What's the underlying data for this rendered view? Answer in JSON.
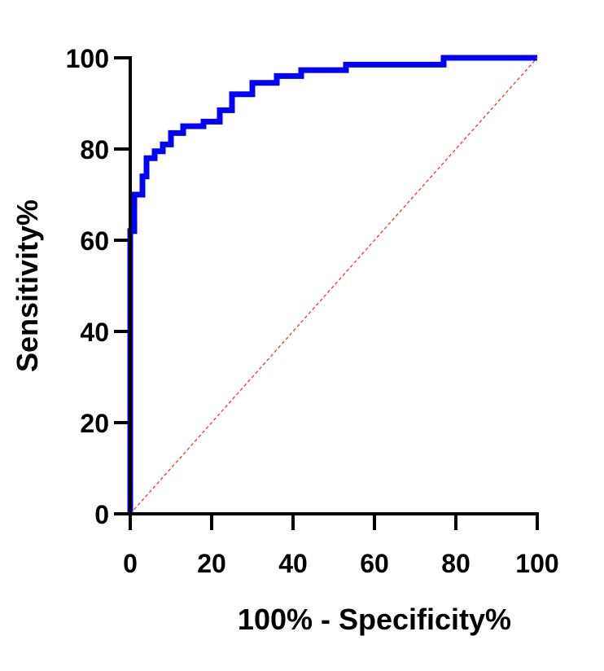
{
  "chart_data": {
    "type": "line",
    "title": "",
    "xlabel": "100% - Specificity%",
    "ylabel": "Sensitivity%",
    "xlim": [
      0,
      100
    ],
    "ylim": [
      0,
      100
    ],
    "x_ticks": [
      "0",
      "20",
      "40",
      "60",
      "80",
      "100"
    ],
    "y_ticks": [
      "0",
      "20",
      "40",
      "60",
      "80",
      "100"
    ],
    "grid": false,
    "legend": "none",
    "series": [
      {
        "style": "step",
        "color": "#0000ff",
        "x": [
          0,
          0,
          1,
          1,
          3,
          3,
          4,
          4,
          6,
          6,
          8,
          8,
          10,
          10,
          13,
          13,
          18,
          18,
          22,
          22,
          25,
          25,
          30,
          30,
          36,
          36,
          42,
          42,
          53,
          53,
          77,
          77,
          100
        ],
        "y": [
          0,
          62,
          62,
          70,
          70,
          74,
          74,
          78,
          78,
          79.5,
          79.5,
          81,
          81,
          83.5,
          83.5,
          85,
          85,
          86,
          86,
          88.5,
          88.5,
          92,
          92,
          94.5,
          94.5,
          96,
          96,
          97.3,
          97.3,
          98.5,
          98.5,
          100,
          100
        ]
      },
      {
        "style": "dashed",
        "color": "#e8463a",
        "x": [
          0,
          100
        ],
        "y": [
          0,
          100
        ]
      }
    ]
  }
}
